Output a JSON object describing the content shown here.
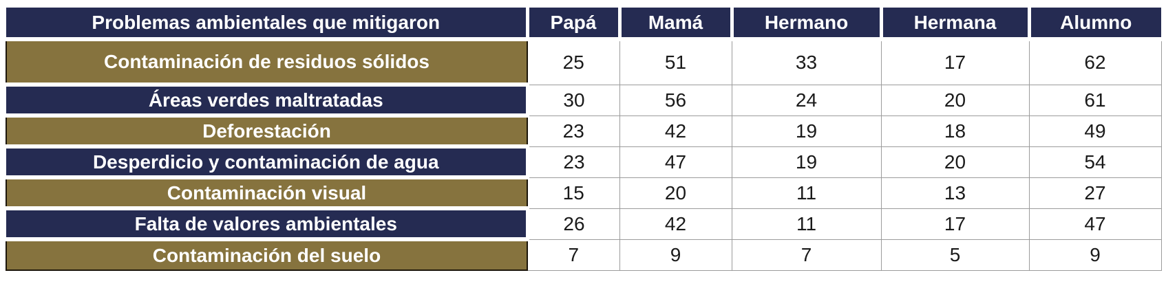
{
  "table": {
    "header": {
      "label_column": "Problemas ambientales que mitigaron",
      "columns": [
        "Papá",
        "Mamá",
        "Hermano",
        "Hermana",
        "Alumno"
      ]
    },
    "rows": [
      {
        "label": "Contaminación de residuos sólidos",
        "values": [
          "25",
          "51",
          "33",
          "17",
          "62"
        ],
        "style": "olive",
        "tall": true
      },
      {
        "label": "Áreas verdes maltratadas",
        "values": [
          "30",
          "56",
          "24",
          "20",
          "61"
        ],
        "style": "navy",
        "tall": false
      },
      {
        "label": "Deforestación",
        "values": [
          "23",
          "42",
          "19",
          "18",
          "49"
        ],
        "style": "olive",
        "tall": false
      },
      {
        "label": "Desperdicio y contaminación de agua",
        "values": [
          "23",
          "47",
          "19",
          "20",
          "54"
        ],
        "style": "navy",
        "tall": false
      },
      {
        "label": "Contaminación visual",
        "values": [
          "15",
          "20",
          "11",
          "13",
          "27"
        ],
        "style": "olive",
        "tall": false
      },
      {
        "label": "Falta de valores ambientales",
        "values": [
          "26",
          "42",
          "11",
          "17",
          "47"
        ],
        "style": "navy",
        "tall": false
      },
      {
        "label": "Contaminación del suelo",
        "values": [
          "7",
          "9",
          "7",
          "5",
          "9"
        ],
        "style": "olive",
        "tall": false
      }
    ],
    "colors": {
      "navy": "#252b52",
      "olive": "#86733e",
      "grid_gray": "#9b9b9b",
      "dark_border": "#1c160b",
      "header_text": "#ffffff",
      "number_text": "#1a1a1a"
    }
  },
  "chart_data": {
    "type": "table",
    "title": "Problemas ambientales que mitigaron",
    "columns": [
      "Problemas ambientales que mitigaron",
      "Papá",
      "Mamá",
      "Hermano",
      "Hermana",
      "Alumno"
    ],
    "rows": [
      [
        "Contaminación de residuos sólidos",
        25,
        51,
        33,
        17,
        62
      ],
      [
        "Áreas verdes maltratadas",
        30,
        56,
        24,
        20,
        61
      ],
      [
        "Deforestación",
        23,
        42,
        19,
        18,
        49
      ],
      [
        "Desperdicio y contaminación de agua",
        23,
        47,
        19,
        20,
        54
      ],
      [
        "Contaminación visual",
        15,
        20,
        11,
        13,
        27
      ],
      [
        "Falta de valores ambientales",
        26,
        42,
        11,
        17,
        47
      ],
      [
        "Contaminación del suelo",
        7,
        9,
        7,
        5,
        9
      ]
    ]
  }
}
